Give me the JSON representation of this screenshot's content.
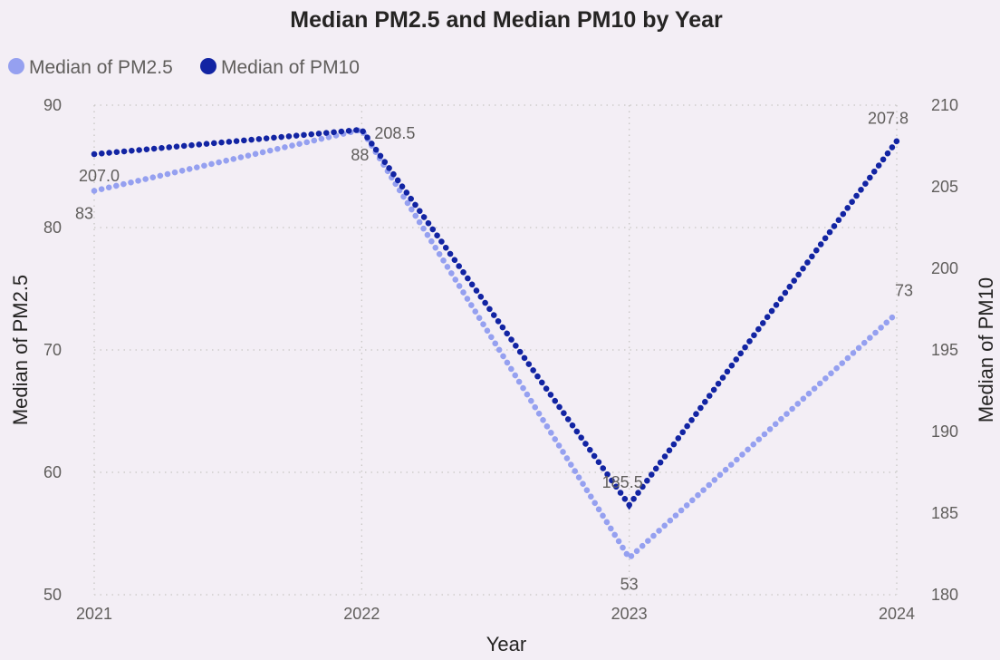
{
  "chart_data": {
    "type": "line",
    "title": "Median PM2.5 and Median PM10 by Year",
    "xlabel": "Year",
    "ylabel_left": "Median of PM2.5",
    "ylabel_right": "Median of PM10",
    "categories": [
      "2021",
      "2022",
      "2023",
      "2024"
    ],
    "ylim_left": [
      50,
      90
    ],
    "yticks_left": [
      50,
      60,
      70,
      80,
      90
    ],
    "ylim_right": [
      180,
      210
    ],
    "yticks_right": [
      180,
      185,
      190,
      195,
      200,
      205,
      210
    ],
    "grid": true,
    "legend_position": "top-left",
    "series": [
      {
        "name": "Median of PM2.5",
        "axis": "left",
        "color": "#95a0f0",
        "values": [
          83,
          88,
          53,
          73
        ],
        "labels": [
          "83",
          "88",
          "53",
          "73"
        ]
      },
      {
        "name": "Median of PM10",
        "axis": "right",
        "color": "#1224a3",
        "values": [
          207.0,
          208.5,
          185.5,
          207.8
        ],
        "labels": [
          "207.0",
          "208.5",
          "185.5",
          "207.8"
        ]
      }
    ]
  }
}
